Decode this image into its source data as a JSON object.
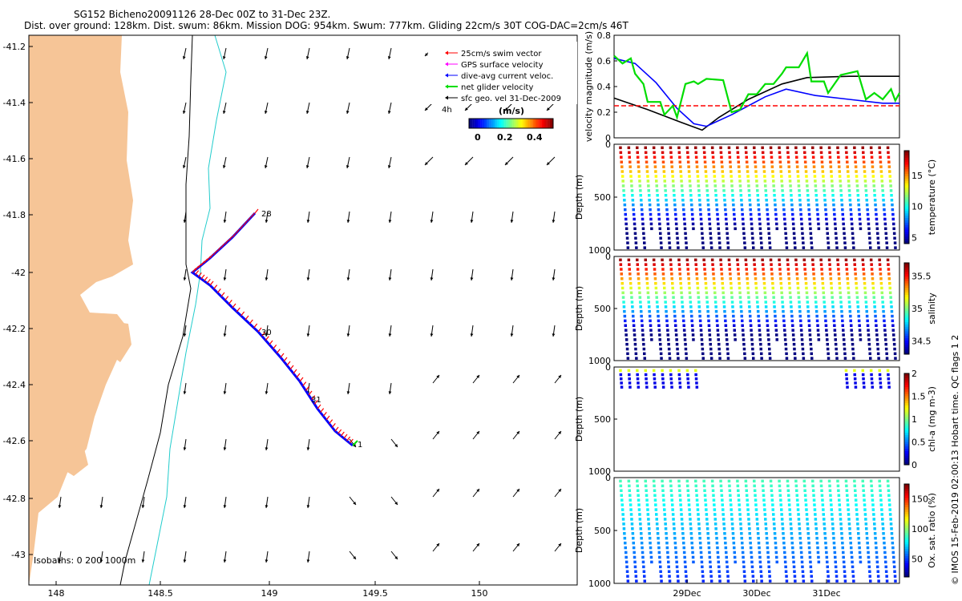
{
  "header": {
    "line1": "SG152 Bicheno20091126 28-Dec 00Z to 31-Dec 23Z.",
    "line2": "Dist. over ground: 128km. Dist. swum: 86km. Mission DOG: 954km. Swum: 777km. Gliding 22cm/s 30T COG-DAC=2cm/s 46T"
  },
  "legend": {
    "items": [
      {
        "label": "25cm/s swim vector",
        "color": "#ff0000"
      },
      {
        "label": "GPS surface velocity",
        "color": "#ff00ff"
      },
      {
        "label": "dive-avg current veloc.",
        "color": "#0000ff"
      },
      {
        "label": "net glider velocity",
        "color": "#00dd00"
      },
      {
        "label": "sfc geo. vel 31-Dec-2009",
        "color": "#000000"
      }
    ],
    "ref_label": "4h",
    "colorbar_title": "(m/s)",
    "colorbar_ticks": [
      "0",
      "0.2",
      "0.4"
    ]
  },
  "map": {
    "x_ticks": [
      "148",
      "148.5",
      "149",
      "149.5",
      "150"
    ],
    "y_ticks": [
      "-41.2",
      "-41.4",
      "-41.6",
      "-41.8",
      "-42",
      "-42.2",
      "-42.4",
      "-42.6",
      "-42.8",
      "-43"
    ],
    "isobaths_label": "Isobaths: 0   200  1000m",
    "track_labels": [
      "28",
      "30",
      "31",
      "1"
    ],
    "land_color": "#f6c597"
  },
  "chart_data": [
    {
      "type": "line",
      "title": "",
      "ylabel": "velocity magnitude (m/s)",
      "ylim": [
        0,
        0.8
      ],
      "y_ticks": [
        "0",
        "0.2",
        "0.4",
        "0.6",
        "0.8"
      ],
      "x_ticks": [
        "29Dec",
        "30Dec",
        "31Dec"
      ],
      "series": [
        {
          "color": "#000000",
          "points": [
            [
              0,
              0.31
            ],
            [
              0.4,
              0.22
            ],
            [
              0.8,
              0.12
            ],
            [
              1.05,
              0.06
            ],
            [
              1.25,
              0.16
            ],
            [
              1.6,
              0.3
            ],
            [
              2.0,
              0.42
            ],
            [
              2.3,
              0.47
            ],
            [
              2.8,
              0.48
            ],
            [
              3.4,
              0.48
            ]
          ]
        },
        {
          "color": "#0000ff",
          "points": [
            [
              0,
              0.62
            ],
            [
              0.25,
              0.58
            ],
            [
              0.5,
              0.43
            ],
            [
              0.75,
              0.23
            ],
            [
              0.95,
              0.11
            ],
            [
              1.1,
              0.09
            ],
            [
              1.4,
              0.18
            ],
            [
              1.8,
              0.32
            ],
            [
              2.05,
              0.38
            ],
            [
              2.4,
              0.33
            ],
            [
              2.8,
              0.3
            ],
            [
              3.2,
              0.27
            ],
            [
              3.4,
              0.27
            ]
          ]
        },
        {
          "color": "#ff0000",
          "points": [
            [
              0,
              0.25
            ],
            [
              3.4,
              0.25
            ]
          ]
        },
        {
          "color": "#00dd00",
          "points": [
            [
              0,
              0.64
            ],
            [
              0.1,
              0.58
            ],
            [
              0.2,
              0.62
            ],
            [
              0.25,
              0.5
            ],
            [
              0.35,
              0.42
            ],
            [
              0.4,
              0.28
            ],
            [
              0.55,
              0.28
            ],
            [
              0.6,
              0.18
            ],
            [
              0.7,
              0.25
            ],
            [
              0.75,
              0.16
            ],
            [
              0.85,
              0.42
            ],
            [
              0.95,
              0.44
            ],
            [
              1.0,
              0.42
            ],
            [
              1.1,
              0.46
            ],
            [
              1.3,
              0.45
            ],
            [
              1.4,
              0.2
            ],
            [
              1.5,
              0.22
            ],
            [
              1.6,
              0.34
            ],
            [
              1.7,
              0.34
            ],
            [
              1.8,
              0.42
            ],
            [
              1.9,
              0.42
            ],
            [
              2.0,
              0.5
            ],
            [
              2.05,
              0.55
            ],
            [
              2.2,
              0.55
            ],
            [
              2.3,
              0.66
            ],
            [
              2.35,
              0.44
            ],
            [
              2.5,
              0.44
            ],
            [
              2.55,
              0.35
            ],
            [
              2.7,
              0.49
            ],
            [
              2.9,
              0.52
            ],
            [
              3.0,
              0.3
            ],
            [
              3.1,
              0.35
            ],
            [
              3.2,
              0.3
            ],
            [
              3.3,
              0.38
            ],
            [
              3.35,
              0.29
            ],
            [
              3.4,
              0.35
            ]
          ]
        }
      ]
    },
    {
      "type": "scatter",
      "ylabel": "Depth (m)",
      "ylim": [
        1000,
        0
      ],
      "y_ticks": [
        "0",
        "500",
        "1000"
      ],
      "colorbar": {
        "label": "temperature (°C)",
        "ticks": [
          "15",
          "10",
          "5"
        ],
        "range": [
          4,
          19
        ]
      }
    },
    {
      "type": "scatter",
      "ylabel": "Depth (m)",
      "ylim": [
        1000,
        0
      ],
      "y_ticks": [
        "0",
        "500",
        "1000"
      ],
      "colorbar": {
        "label": "salinity",
        "ticks": [
          "35.5",
          "35",
          "34.5"
        ],
        "range": [
          34.3,
          35.7
        ]
      }
    },
    {
      "type": "scatter",
      "ylabel": "Depth (m)",
      "ylim": [
        1000,
        0
      ],
      "y_ticks": [
        "0",
        "500",
        "1000"
      ],
      "colorbar": {
        "label": "chl-a (mg m-3)",
        "ticks": [
          "2",
          "1.5",
          "1",
          "0.5",
          "0"
        ],
        "range": [
          0,
          2
        ]
      }
    },
    {
      "type": "scatter",
      "ylabel": "Depth (m)",
      "ylim": [
        1000,
        0
      ],
      "y_ticks": [
        "0",
        "500",
        "1000"
      ],
      "colorbar": {
        "label": "Ox. sat. ratio (%)",
        "ticks": [
          "150",
          "100",
          "50"
        ],
        "range": [
          20,
          175
        ]
      }
    }
  ],
  "footer": {
    "side_note": "© IMOS 15-Feb-2019 02:00:13 Hobart time. QC flags 1  2"
  }
}
